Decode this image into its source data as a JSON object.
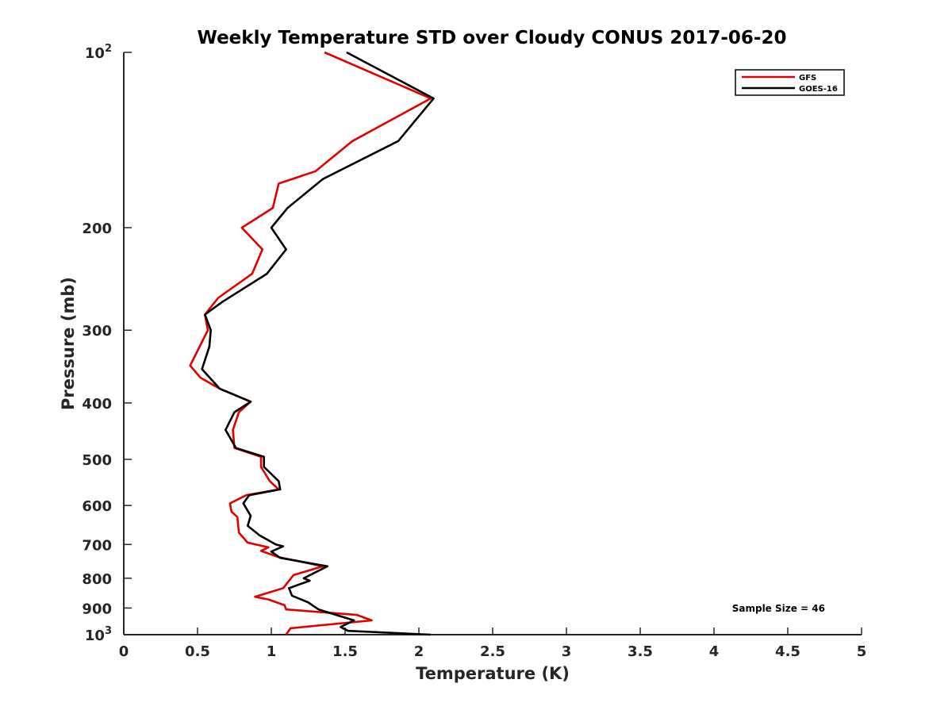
{
  "chart_data": {
    "type": "line",
    "title": "Weekly Temperature STD over Cloudy CONUS 2017-06-20",
    "xlabel": "Temperature (K)",
    "ylabel": "Pressure (mb)",
    "xlim": [
      0,
      5
    ],
    "ylim": [
      100,
      1000
    ],
    "yscale": "log",
    "y_reversed": true,
    "x_ticks": [
      "0",
      "0.5",
      "1",
      "1.5",
      "2",
      "2.5",
      "3",
      "3.5",
      "4",
      "4.5",
      "5"
    ],
    "y_ticks": [
      {
        "value": 100,
        "label": "10",
        "sup": "2"
      },
      {
        "value": 200,
        "label": "200",
        "sup": ""
      },
      {
        "value": 300,
        "label": "300",
        "sup": ""
      },
      {
        "value": 400,
        "label": "400",
        "sup": ""
      },
      {
        "value": 500,
        "label": "500",
        "sup": ""
      },
      {
        "value": 600,
        "label": "600",
        "sup": ""
      },
      {
        "value": 700,
        "label": "700",
        "sup": ""
      },
      {
        "value": 800,
        "label": "800",
        "sup": ""
      },
      {
        "value": 900,
        "label": "900",
        "sup": ""
      },
      {
        "value": 1000,
        "label": "10",
        "sup": "3"
      }
    ],
    "grid": false,
    "legend_position": "top-right",
    "series": [
      {
        "name": "GFS",
        "color": "#e00000",
        "points": [
          [
            1.36,
            100
          ],
          [
            2.08,
            120
          ],
          [
            1.55,
            142
          ],
          [
            1.3,
            160
          ],
          [
            1.05,
            168
          ],
          [
            1.01,
            185
          ],
          [
            0.8,
            200
          ],
          [
            0.94,
            218
          ],
          [
            0.87,
            240
          ],
          [
            0.64,
            264
          ],
          [
            0.55,
            282
          ],
          [
            0.57,
            300
          ],
          [
            0.45,
            345
          ],
          [
            0.52,
            362
          ],
          [
            0.65,
            378
          ],
          [
            0.86,
            398
          ],
          [
            0.78,
            415
          ],
          [
            0.74,
            445
          ],
          [
            0.75,
            478
          ],
          [
            0.93,
            495
          ],
          [
            0.93,
            515
          ],
          [
            0.99,
            545
          ],
          [
            1.05,
            563
          ],
          [
            0.83,
            576
          ],
          [
            0.72,
            595
          ],
          [
            0.73,
            615
          ],
          [
            0.77,
            628
          ],
          [
            0.78,
            668
          ],
          [
            0.84,
            695
          ],
          [
            0.98,
            708
          ],
          [
            0.93,
            718
          ],
          [
            1.05,
            736
          ],
          [
            1.35,
            763
          ],
          [
            1.15,
            790
          ],
          [
            1.08,
            832
          ],
          [
            0.89,
            861
          ],
          [
            0.98,
            870
          ],
          [
            1.09,
            890
          ],
          [
            1.1,
            905
          ],
          [
            1.58,
            925
          ],
          [
            1.68,
            945
          ],
          [
            1.13,
            975
          ],
          [
            1.1,
            1000
          ]
        ]
      },
      {
        "name": "GOES-16",
        "color": "#000000",
        "points": [
          [
            1.51,
            100
          ],
          [
            2.1,
            120
          ],
          [
            1.86,
            142
          ],
          [
            1.35,
            165
          ],
          [
            1.11,
            185
          ],
          [
            1.0,
            200
          ],
          [
            1.1,
            218
          ],
          [
            0.97,
            240
          ],
          [
            0.67,
            268
          ],
          [
            0.55,
            282
          ],
          [
            0.59,
            300
          ],
          [
            0.58,
            320
          ],
          [
            0.53,
            350
          ],
          [
            0.65,
            378
          ],
          [
            0.86,
            398
          ],
          [
            0.75,
            415
          ],
          [
            0.69,
            445
          ],
          [
            0.76,
            478
          ],
          [
            0.95,
            495
          ],
          [
            0.95,
            515
          ],
          [
            1.05,
            545
          ],
          [
            1.06,
            563
          ],
          [
            0.85,
            576
          ],
          [
            0.81,
            595
          ],
          [
            0.86,
            625
          ],
          [
            0.84,
            650
          ],
          [
            0.92,
            675
          ],
          [
            1.03,
            700
          ],
          [
            1.08,
            705
          ],
          [
            1.0,
            720
          ],
          [
            1.06,
            738
          ],
          [
            1.38,
            763
          ],
          [
            1.22,
            800
          ],
          [
            1.26,
            808
          ],
          [
            1.12,
            832
          ],
          [
            1.14,
            857
          ],
          [
            1.25,
            880
          ],
          [
            1.32,
            905
          ],
          [
            1.56,
            945
          ],
          [
            1.47,
            970
          ],
          [
            1.52,
            985
          ],
          [
            2.08,
            1000
          ]
        ]
      }
    ],
    "annotation": "Sample Size = 46"
  }
}
